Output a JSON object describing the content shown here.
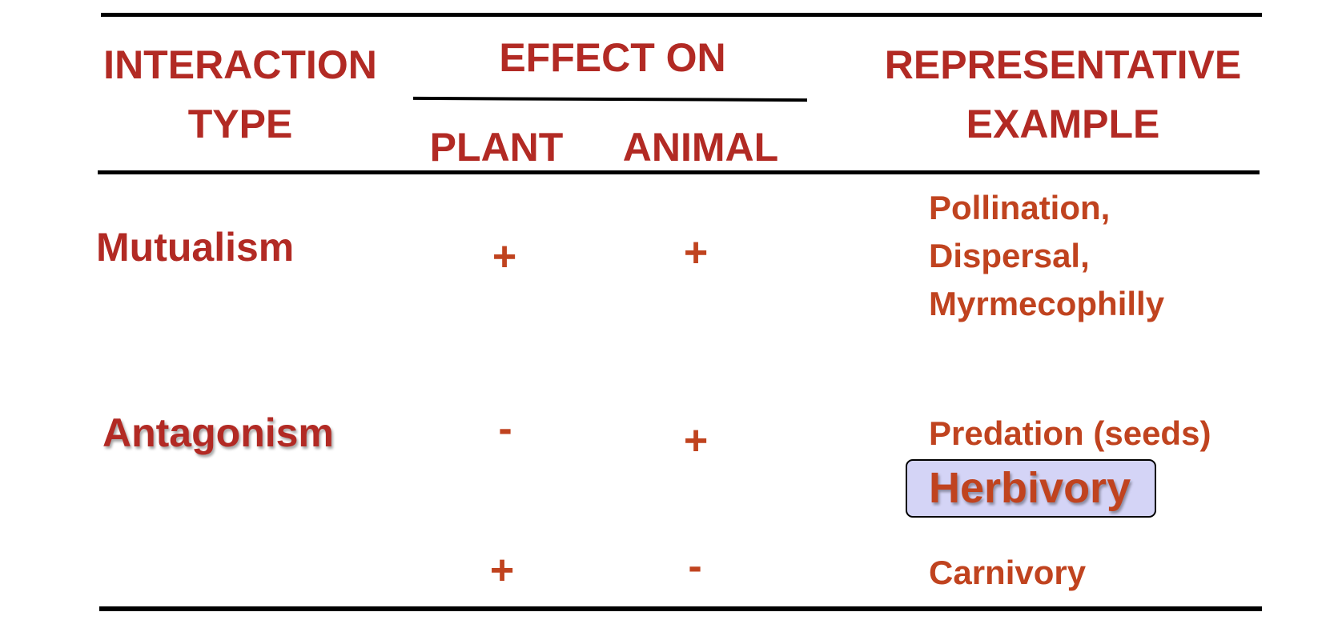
{
  "colors": {
    "header_text": "#b22a24",
    "body_text": "#c0431f",
    "rules": "#000000",
    "highlight_fill": "#d4d4f6"
  },
  "header": {
    "interaction_type": [
      "INTERACTION",
      "TYPE"
    ],
    "effect_on": "EFFECT ON",
    "plant": "PLANT",
    "animal": "ANIMAL",
    "representative_example": [
      "REPRESENTATIVE",
      "EXAMPLE"
    ]
  },
  "rows": [
    {
      "type": "Mutualism",
      "plant": "+",
      "animal": "+",
      "examples": [
        "Pollination,",
        "Dispersal,",
        "Myrmecophilly"
      ]
    },
    {
      "type": "Antagonism",
      "plant": "-",
      "animal": "+",
      "examples": [
        "Predation (seeds)"
      ],
      "highlighted_example": "Herbivory"
    },
    {
      "type": "",
      "plant": "+",
      "animal": "-",
      "examples": [
        "Carnivory"
      ]
    }
  ]
}
